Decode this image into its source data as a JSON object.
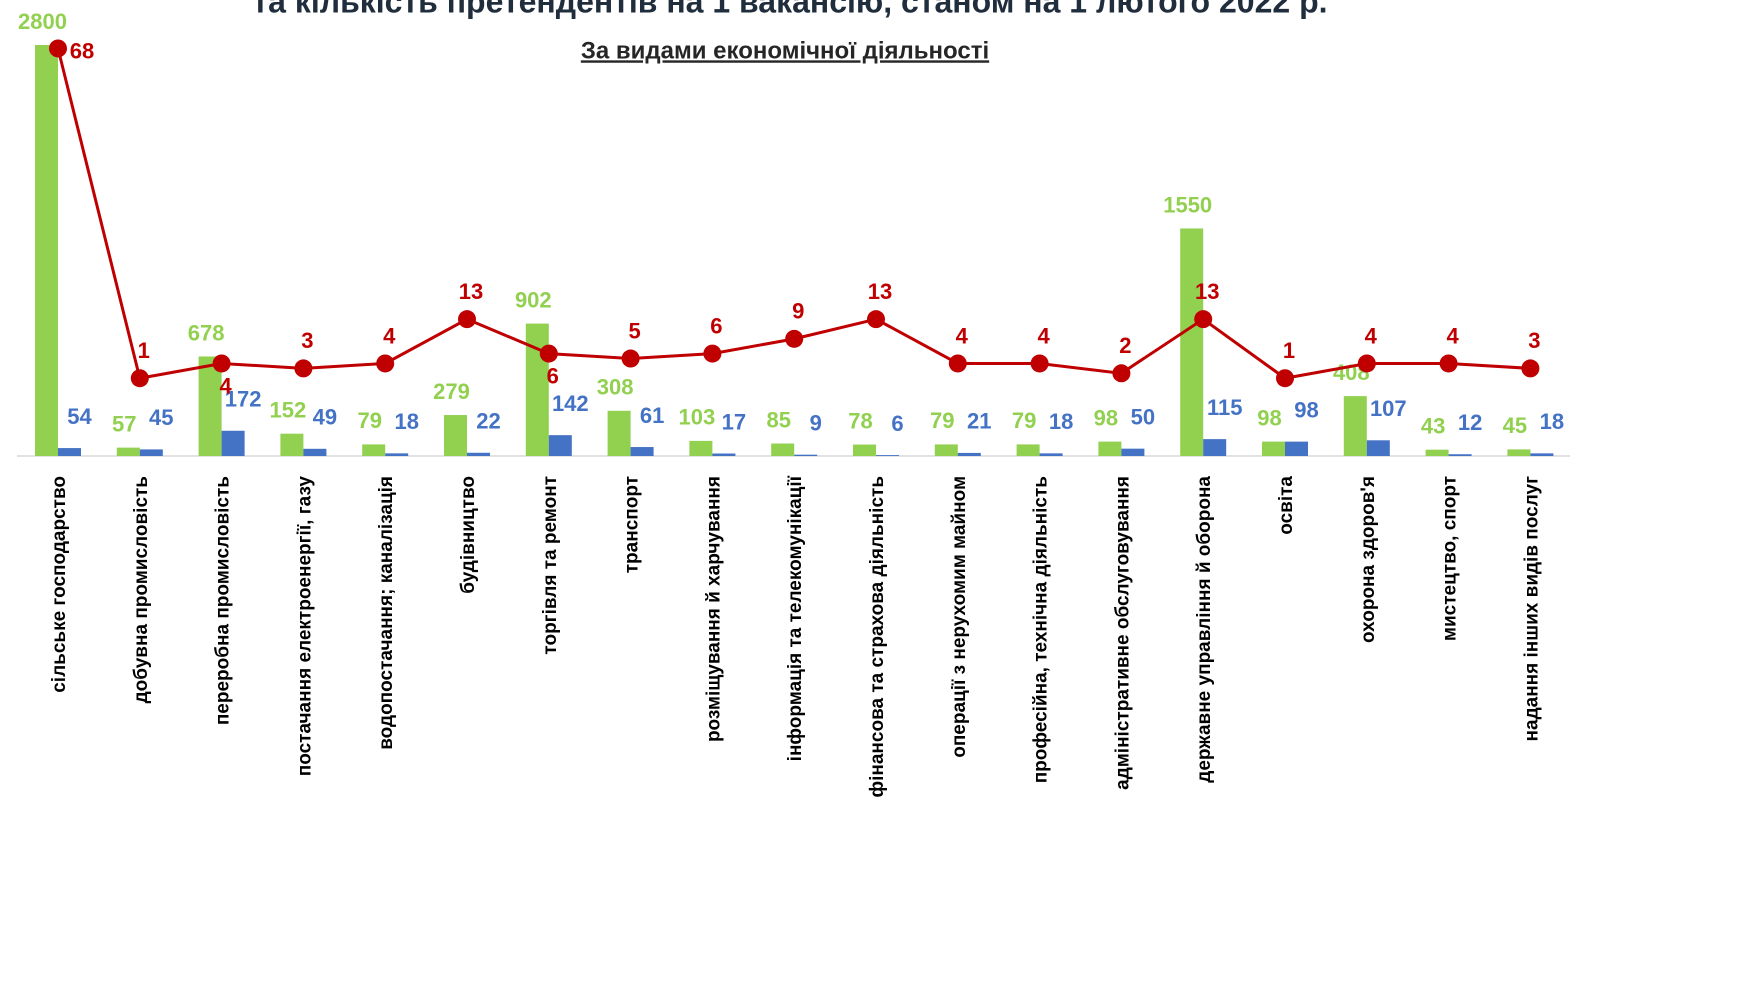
{
  "chart_data": {
    "type": "bar_line",
    "title": "та кількість претендентів на 1 вакансію, станом на 1 лютого 2022 р.",
    "subtitle": "За видами економічної діяльності",
    "categories": [
      "сільське господарство",
      "добувна промисловість",
      "переробна промисловість",
      "постачання електроенергії, газу",
      "водопостачання; каналізація",
      "будівництво",
      "торгівля та ремонт",
      "транспорт",
      "розміщування й харчування",
      "інформація та телекомунікації",
      "фінансова та страхова діяльність",
      "операції з нерухомим майном",
      "професійна, технічна діяльність",
      "адміністративне обслуговування",
      "державне управління й оборона",
      "освіта",
      "охорона здоров'я",
      "мистецтво, спорт",
      "надання інших видів послуг"
    ],
    "series": [
      {
        "type": "bar",
        "color": "#92d050",
        "values": [
          2800,
          57,
          678,
          152,
          79,
          279,
          902,
          308,
          103,
          85,
          78,
          79,
          79,
          98,
          1550,
          98,
          408,
          43,
          45
        ]
      },
      {
        "type": "bar",
        "color": "#4472c4",
        "values": [
          54,
          45,
          172,
          49,
          18,
          22,
          142,
          61,
          17,
          9,
          6,
          21,
          18,
          50,
          115,
          98,
          107,
          12,
          18
        ]
      },
      {
        "type": "line",
        "axis": "y2",
        "color": "#c00000",
        "values": [
          68,
          1,
          4,
          3,
          4,
          13,
          6,
          5,
          6,
          9,
          13,
          4,
          4,
          2,
          13,
          1,
          4,
          4,
          3
        ]
      }
    ],
    "ylim": [
      0,
      2800
    ],
    "y2lim": [
      -14.8,
      68.7
    ]
  }
}
